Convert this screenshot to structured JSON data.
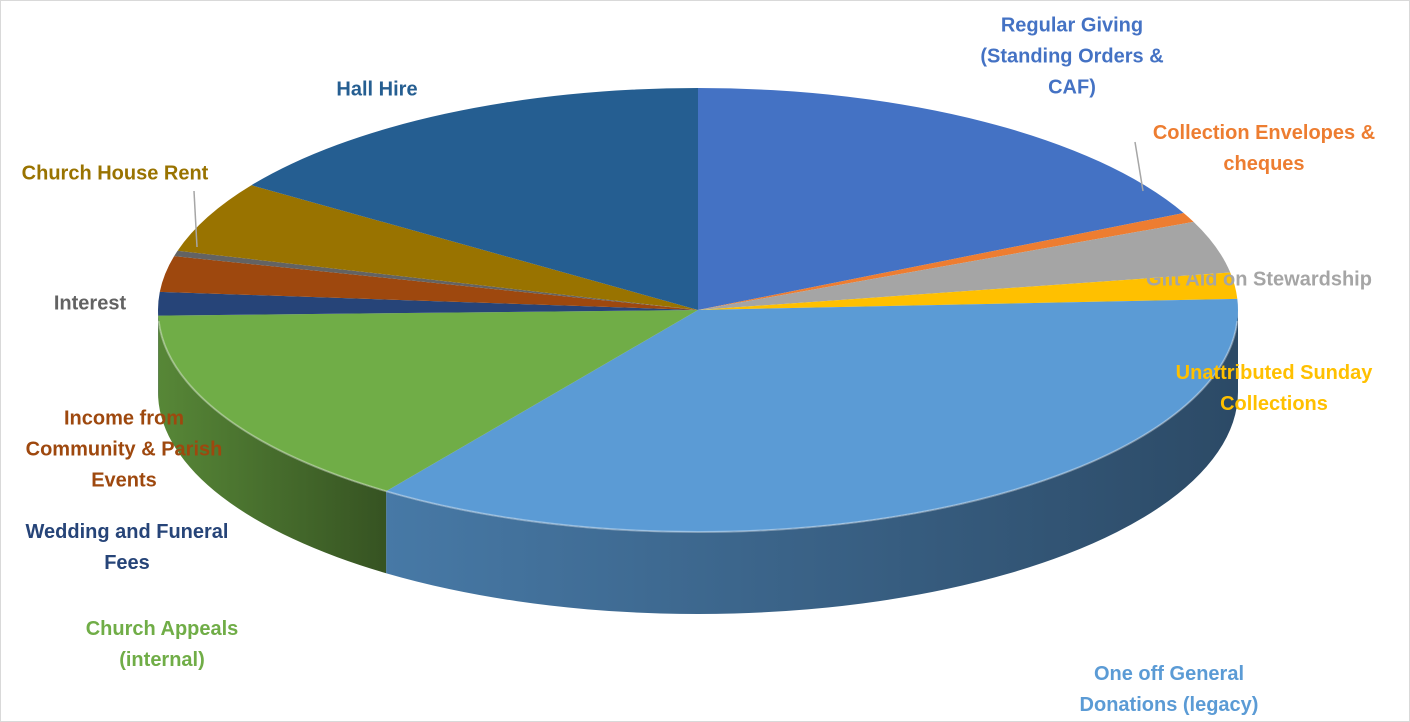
{
  "chart_data": {
    "type": "pie",
    "style": "3d",
    "title": "",
    "legend": "none",
    "slices": [
      {
        "label_lines": [
          "Regular Giving",
          "(Standing Orders &",
          "CAF)"
        ],
        "value": 17.8,
        "color": "#4472c4"
      },
      {
        "label_lines": [
          "Collection Envelopes &",
          "cheques"
        ],
        "value": 0.7,
        "color": "#ed7d31"
      },
      {
        "label_lines": [
          "Gift Aid on Stewardship"
        ],
        "value": 3.8,
        "color": "#a5a5a5"
      },
      {
        "label_lines": [
          "Unattributed Sunday",
          "Collections"
        ],
        "value": 1.9,
        "color": "#ffc000"
      },
      {
        "label_lines": [
          "One off General",
          "Donations (legacy)"
        ],
        "value": 35.6,
        "color": "#5b9bd5"
      },
      {
        "label_lines": [
          "Church Appeals",
          "(internal)"
        ],
        "value": 14.8,
        "color": "#70ad47"
      },
      {
        "label_lines": [
          "Wedding and Funeral",
          "Fees"
        ],
        "value": 1.7,
        "color": "#264478"
      },
      {
        "label_lines": [
          "Income from",
          "Community & Parish",
          "Events"
        ],
        "value": 2.6,
        "color": "#9e480e"
      },
      {
        "label_lines": [
          "Interest"
        ],
        "value": 0.4,
        "color": "#636363"
      },
      {
        "label_lines": [
          "Church House Rent"
        ],
        "value": 5.2,
        "color": "#997300"
      },
      {
        "label_lines": [
          "Hall Hire"
        ],
        "value": 15.5,
        "color": "#255e91"
      }
    ]
  }
}
